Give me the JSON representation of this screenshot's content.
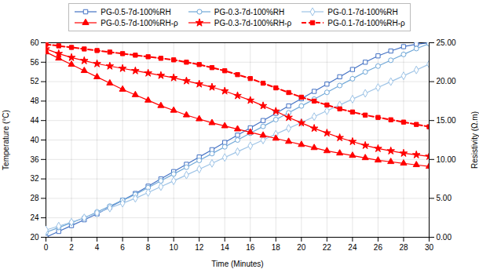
{
  "chart_data": {
    "type": "line",
    "x": [
      0,
      1,
      2,
      3,
      4,
      5,
      6,
      7,
      8,
      9,
      10,
      11,
      12,
      13,
      14,
      15,
      16,
      17,
      18,
      19,
      20,
      21,
      22,
      23,
      24,
      25,
      26,
      27,
      28,
      29,
      30
    ],
    "xlabel": "Time (Minutes)",
    "ylabel": "Temperature (°C)",
    "y2label": "Resistivity (Ω.m)",
    "xlim": [
      0,
      30
    ],
    "xticks": [
      0,
      2,
      4,
      6,
      8,
      10,
      12,
      14,
      16,
      18,
      20,
      22,
      24,
      26,
      28,
      30
    ],
    "ylim": [
      20,
      60
    ],
    "yticks": [
      20,
      24,
      28,
      32,
      36,
      40,
      44,
      48,
      52,
      56,
      60
    ],
    "y2lim": [
      0.0,
      25.0
    ],
    "y2ticks": [
      {
        "value": 0.0,
        "label": "0.00"
      },
      {
        "value": 5.0,
        "label": "5.00"
      },
      {
        "value": 10.0,
        "label": "10.00"
      },
      {
        "value": 15.0,
        "label": "15.00"
      },
      {
        "value": 20.0,
        "label": "20.00"
      },
      {
        "value": 25.0,
        "label": "25.00"
      }
    ],
    "grid": true,
    "legend": "top",
    "series": [
      {
        "name": "PG-0.5-7d-100%RH",
        "color": "#4472C4",
        "marker": "square",
        "line_style": "solid",
        "values": [
          20.0,
          21.2,
          22.4,
          23.6,
          24.8,
          26.2,
          27.6,
          29.0,
          30.5,
          32.0,
          33.5,
          35.0,
          36.5,
          38.0,
          39.5,
          41.0,
          42.5,
          44.0,
          45.5,
          47.0,
          48.5,
          50.0,
          51.5,
          53.0,
          54.5,
          56.0,
          57.3,
          58.3,
          59.2,
          59.7,
          60.0
        ]
      },
      {
        "name": "PG-0.3-7d-100%RH",
        "color": "#70a8d8",
        "marker": "circle",
        "line_style": "solid",
        "values": [
          21.0,
          22.0,
          23.0,
          24.0,
          25.2,
          26.4,
          27.6,
          28.8,
          30.2,
          31.6,
          33.0,
          34.4,
          35.8,
          37.2,
          38.6,
          40.0,
          41.4,
          42.8,
          44.2,
          45.6,
          47.0,
          48.4,
          49.8,
          51.2,
          52.6,
          54.0,
          55.2,
          56.4,
          57.6,
          58.8,
          59.8
        ]
      },
      {
        "name": "PG-0.1-7d-100%RH",
        "color": "#9dc3e6",
        "marker": "diamond",
        "line_style": "solid",
        "values": [
          21.5,
          22.3,
          23.1,
          24.0,
          25.0,
          26.0,
          27.0,
          28.0,
          29.2,
          30.4,
          31.6,
          32.8,
          34.0,
          35.2,
          36.4,
          37.6,
          38.8,
          40.0,
          41.2,
          42.4,
          43.6,
          44.8,
          46.0,
          47.2,
          48.4,
          49.6,
          50.8,
          52.0,
          53.2,
          54.4,
          55.6
        ]
      },
      {
        "name": "PG-0.5-7d-100%RH-ρ",
        "color": "#FF0000",
        "marker": "triangle",
        "line_style": "solid",
        "axis": "y2",
        "values": [
          23.8,
          23.0,
          22.2,
          21.4,
          20.6,
          19.8,
          19.0,
          18.3,
          17.6,
          16.9,
          16.3,
          15.7,
          15.2,
          14.7,
          14.3,
          13.9,
          13.5,
          13.1,
          12.7,
          12.3,
          11.9,
          11.5,
          11.1,
          10.8,
          10.5,
          10.2,
          9.9,
          9.7,
          9.5,
          9.3,
          9.1
        ]
      },
      {
        "name": "PG-0.3-7d-100%RH-ρ",
        "color": "#FF0000",
        "marker": "star",
        "line_style": "solid",
        "axis": "y2",
        "values": [
          24.2,
          23.6,
          23.1,
          22.7,
          22.3,
          22.0,
          21.7,
          21.4,
          21.1,
          20.8,
          20.5,
          20.1,
          19.7,
          19.3,
          18.8,
          18.2,
          17.6,
          16.9,
          16.2,
          15.4,
          14.7,
          14.0,
          13.4,
          12.8,
          12.3,
          11.8,
          11.4,
          11.1,
          10.8,
          10.6,
          10.4
        ]
      },
      {
        "name": "PG-0.1-7d-100%RH-ρ",
        "color": "#FF0000",
        "marker": "square",
        "line_style": "dashed",
        "axis": "y2",
        "values": [
          24.8,
          24.6,
          24.4,
          24.2,
          24.0,
          23.8,
          23.6,
          23.4,
          23.2,
          23.0,
          22.8,
          22.5,
          22.2,
          21.8,
          21.4,
          20.9,
          20.4,
          19.8,
          19.2,
          18.6,
          18.0,
          17.5,
          17.0,
          16.5,
          16.1,
          15.7,
          15.4,
          15.1,
          14.8,
          14.5,
          14.2
        ]
      }
    ]
  }
}
